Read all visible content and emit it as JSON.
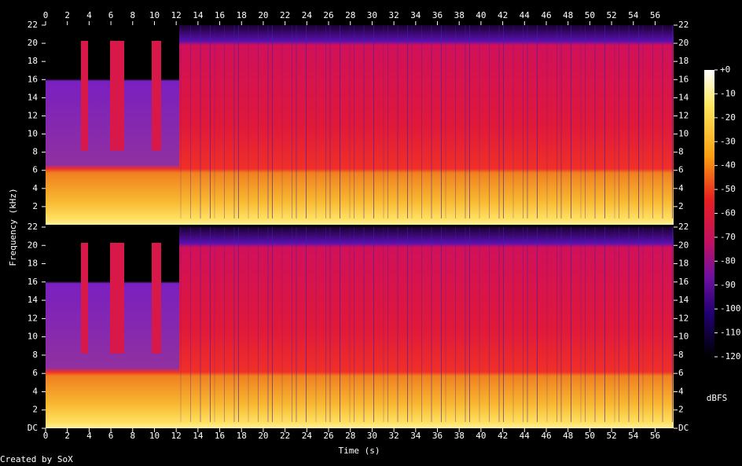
{
  "chart_data": {
    "type": "spectrogram",
    "x_label": "Time (s)",
    "y_label": "Frequency (kHz)",
    "xlim": [
      0,
      57.7
    ],
    "xticks": [
      0,
      2,
      4,
      6,
      8,
      10,
      12,
      14,
      16,
      18,
      20,
      22,
      24,
      26,
      28,
      30,
      32,
      34,
      36,
      38,
      40,
      42,
      44,
      46,
      48,
      50,
      52,
      54,
      56
    ],
    "panels": [
      {
        "ylim": [
          0,
          22
        ],
        "yticks": [
          2,
          4,
          6,
          8,
          10,
          12,
          14,
          16,
          18,
          20,
          22
        ]
      },
      {
        "ylim": [
          0,
          22
        ],
        "yticks": [
          {
            "value": 0,
            "label": "DC"
          },
          2,
          4,
          6,
          8,
          10,
          12,
          14,
          16,
          18,
          20,
          22
        ]
      }
    ],
    "colorbar": {
      "label": "dBFS",
      "lim": [
        -120,
        0
      ],
      "ticks": [
        {
          "value": 0,
          "label": "+0"
        },
        -10,
        -20,
        -30,
        -40,
        -50,
        -60,
        -70,
        -80,
        -90,
        -100,
        -110,
        -120
      ]
    },
    "footer": "Created by SoX"
  }
}
